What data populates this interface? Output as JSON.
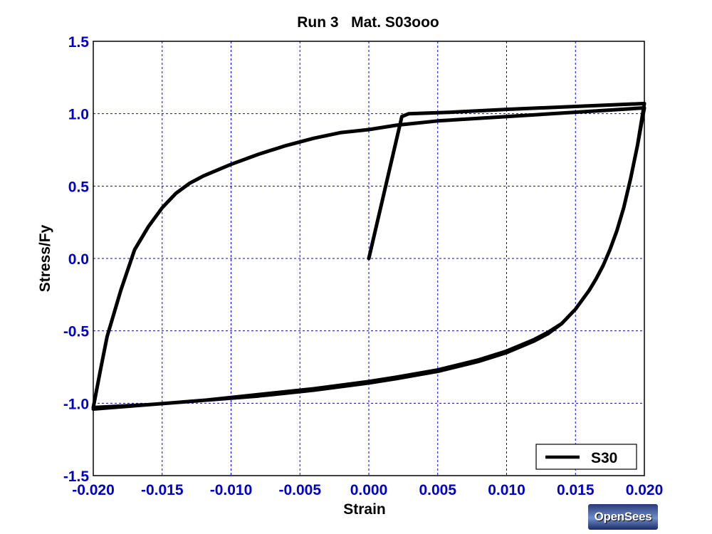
{
  "chart_data": {
    "type": "line",
    "title": "Run 3   Mat. S03ooo",
    "xlabel": "Strain",
    "ylabel": "Stress/Fy",
    "xlim": [
      -0.02,
      0.02
    ],
    "ylim": [
      -1.5,
      1.5
    ],
    "xticks": [
      "-0.020",
      "-0.015",
      "-0.010",
      "-0.005",
      "0.000",
      "0.005",
      "0.010",
      "0.015",
      "0.020"
    ],
    "yticks": [
      "1.5",
      "1.0",
      "0.5",
      "0.0",
      "-0.5",
      "-1.0",
      "-1.5"
    ],
    "grid": true,
    "legend_position": "bottom-right",
    "line_color": "#000000",
    "axis_text_color": "#0000cc",
    "grid_color": "#0000ff",
    "series": [
      {
        "name": "S30",
        "x": [
          0.0,
          0.0024,
          0.0029,
          0.006,
          0.01,
          0.015,
          0.02,
          0.0195,
          0.019,
          0.0185,
          0.018,
          0.0175,
          0.017,
          0.0165,
          0.016,
          0.015,
          0.014,
          0.013,
          0.012,
          0.01,
          0.008,
          0.005,
          0.002,
          0.0,
          -0.004,
          -0.008,
          -0.012,
          -0.016,
          -0.02,
          -0.0195,
          -0.019,
          -0.018,
          -0.017,
          -0.016,
          -0.015,
          -0.014,
          -0.013,
          -0.012,
          -0.01,
          -0.008,
          -0.006,
          -0.004,
          -0.002,
          0.0,
          0.002,
          0.005,
          0.01,
          0.015,
          0.02,
          0.0195,
          0.019,
          0.0185,
          0.018,
          0.0175,
          0.017,
          0.0165,
          0.016,
          0.015,
          0.014,
          0.013,
          0.012,
          0.01,
          0.008,
          0.005,
          0.002,
          0.0,
          -0.004,
          -0.008,
          -0.012,
          -0.016,
          -0.02
        ],
        "y": [
          0.0,
          0.98,
          1.0,
          1.01,
          1.03,
          1.05,
          1.07,
          0.78,
          0.55,
          0.35,
          0.19,
          0.06,
          -0.05,
          -0.14,
          -0.22,
          -0.35,
          -0.45,
          -0.52,
          -0.57,
          -0.65,
          -0.71,
          -0.78,
          -0.83,
          -0.86,
          -0.91,
          -0.95,
          -0.98,
          -1.01,
          -1.03,
          -0.78,
          -0.54,
          -0.22,
          0.06,
          0.22,
          0.35,
          0.45,
          0.52,
          0.57,
          0.65,
          0.72,
          0.78,
          0.83,
          0.87,
          0.89,
          0.92,
          0.95,
          0.98,
          1.01,
          1.04,
          0.78,
          0.55,
          0.35,
          0.19,
          0.06,
          -0.05,
          -0.14,
          -0.22,
          -0.35,
          -0.45,
          -0.51,
          -0.56,
          -0.64,
          -0.7,
          -0.77,
          -0.82,
          -0.85,
          -0.9,
          -0.94,
          -0.98,
          -1.01,
          -1.04
        ]
      }
    ]
  }
}
